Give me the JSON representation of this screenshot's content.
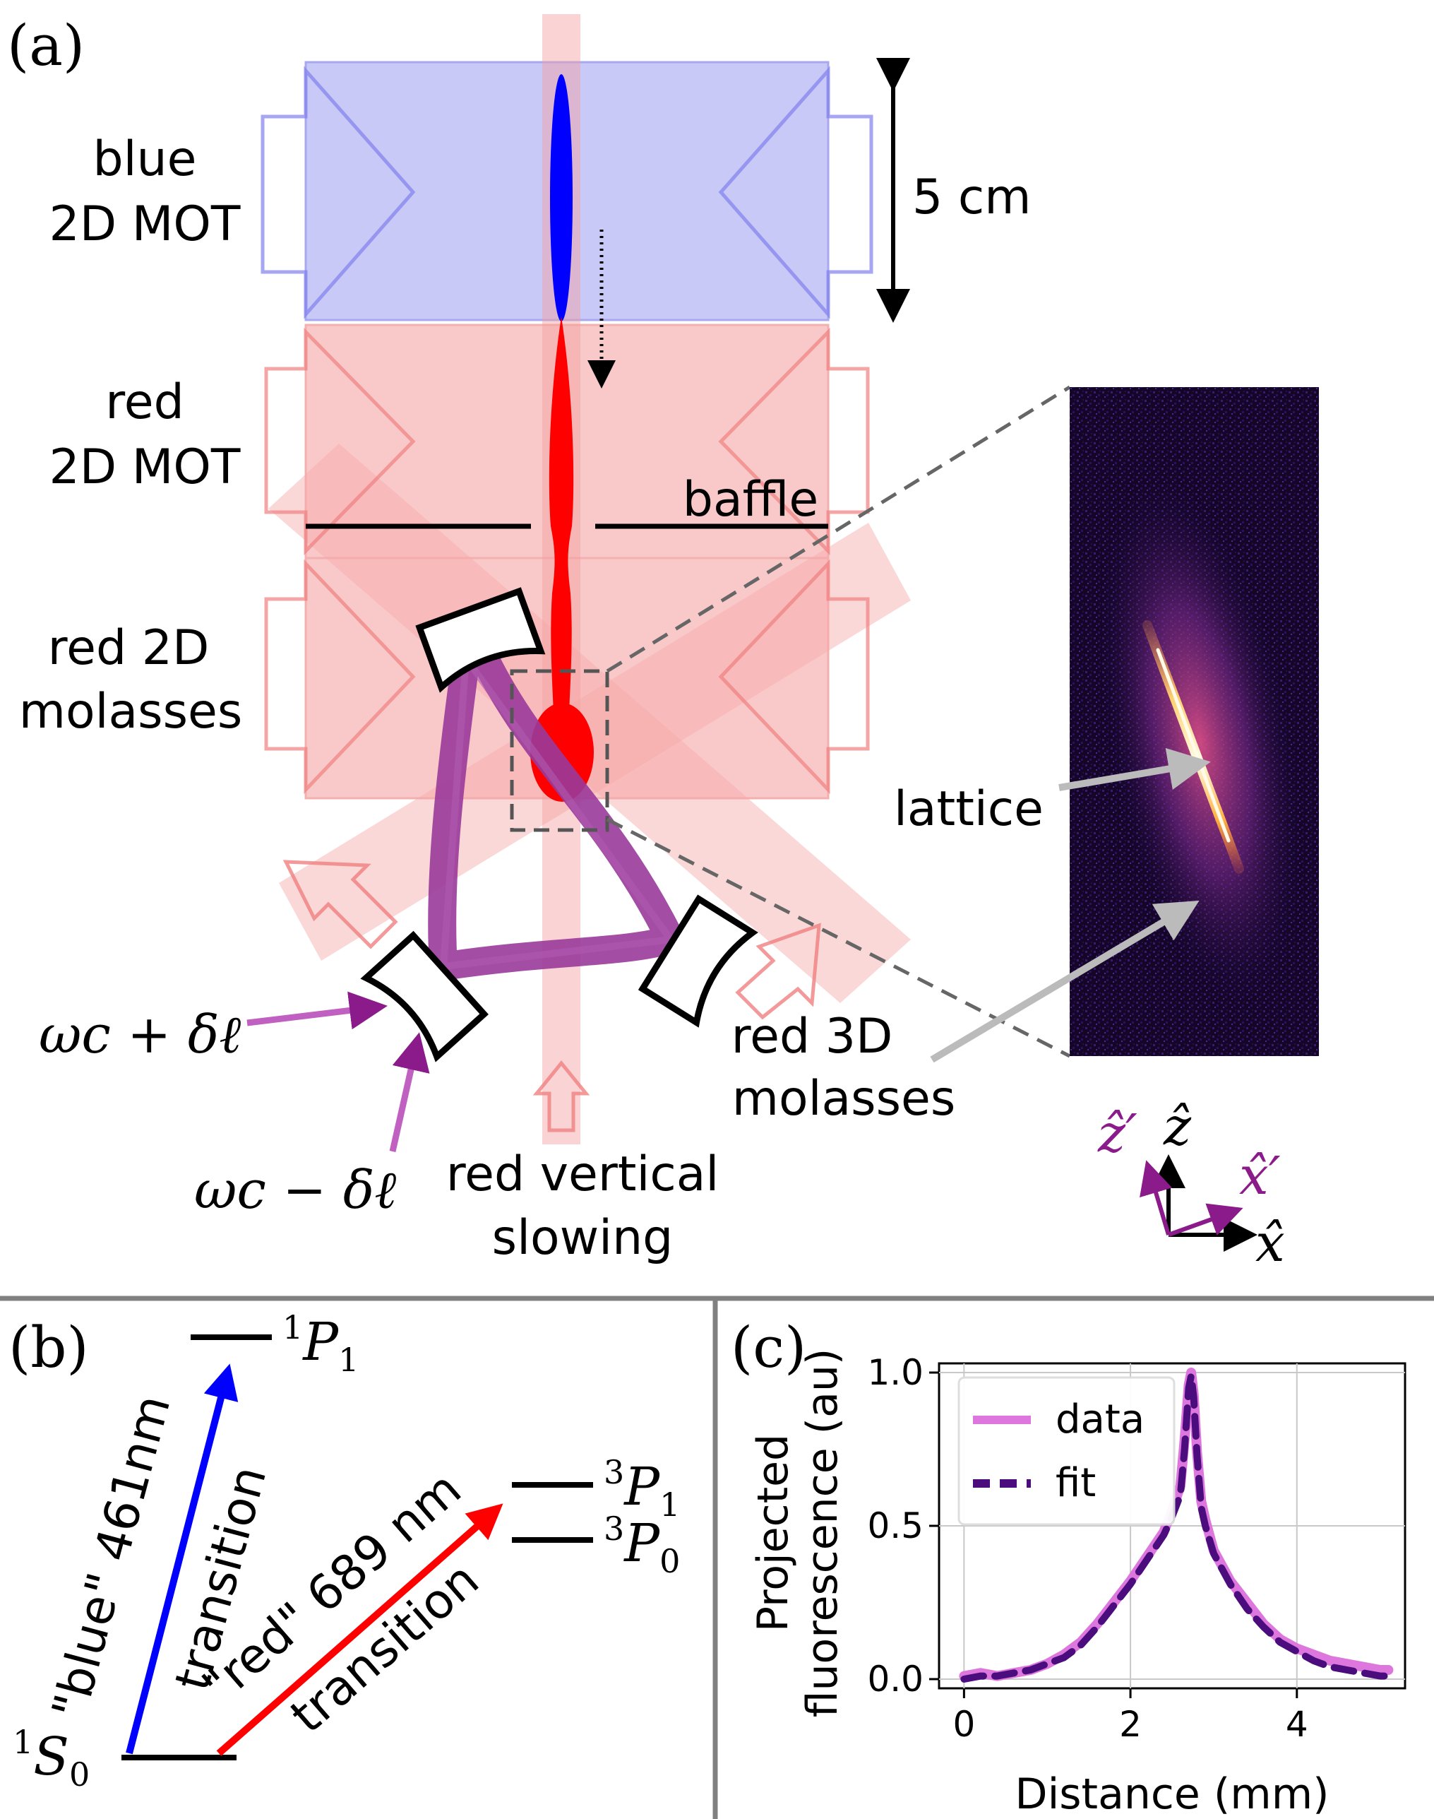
{
  "panel_a": {
    "label": "(a)",
    "scale_label": "5 cm",
    "region_blue": [
      "blue",
      "2D MOT"
    ],
    "region_red_mot": [
      "red",
      "2D MOT"
    ],
    "region_molasses": [
      "red 2D",
      "molasses"
    ],
    "baffle_label": "baffle",
    "lattice_label": "lattice",
    "molasses3d_label": [
      "red 3D",
      "molasses"
    ],
    "vertical_slowing_label": [
      "red vertical",
      "slowing"
    ],
    "input_plus": "ωc + δℓ",
    "input_minus": "ωc − δℓ",
    "axes": {
      "z_prime": "ẑ′",
      "z": "ẑ",
      "x_prime": "x̂′",
      "x": "x̂"
    },
    "colors": {
      "blue_region": "#c9c9f7",
      "red_region": "#f9c8c8",
      "cavity": "#9a3a9a",
      "blue_beam": "#0000ff",
      "red_beam": "#ff0000"
    }
  },
  "panel_b": {
    "label": "(b)",
    "levels": {
      "S0": "1S0",
      "P1_singlet": "1P1",
      "P1_triplet": "3P1",
      "P0_triplet": "3P0"
    },
    "blue_transition": [
      "\"blue\" 461nm",
      "transition"
    ],
    "red_transition": [
      "\"red\" 689 nm",
      "transition"
    ]
  },
  "panel_c": {
    "label": "(c)",
    "chart_data": {
      "type": "line",
      "xlabel": "Distance (mm)",
      "ylabel": "Projected fluorescence (au)",
      "ylabel_lines": [
        "Projected",
        "fluorescence (au)"
      ],
      "xlim": [
        -0.3,
        5.3
      ],
      "ylim": [
        -0.03,
        1.03
      ],
      "xticks": [
        0,
        2,
        4
      ],
      "yticks": [
        0.0,
        0.5,
        1.0
      ],
      "ytick_labels": [
        "0.0",
        "0.5",
        "1.0"
      ],
      "grid": true,
      "legend": "top-left",
      "series": [
        {
          "name": "data",
          "color": "#dd77dd",
          "style": "solid",
          "x": [
            0.0,
            0.2,
            0.4,
            0.6,
            0.8,
            1.0,
            1.2,
            1.4,
            1.6,
            1.8,
            2.0,
            2.2,
            2.4,
            2.5,
            2.6,
            2.65,
            2.7,
            2.73,
            2.76,
            2.8,
            2.85,
            2.9,
            3.0,
            3.2,
            3.4,
            3.6,
            3.8,
            4.0,
            4.2,
            4.4,
            4.6,
            4.8,
            5.0,
            5.1
          ],
          "y": [
            0.01,
            0.02,
            0.01,
            0.02,
            0.03,
            0.05,
            0.08,
            0.12,
            0.18,
            0.25,
            0.32,
            0.4,
            0.48,
            0.55,
            0.63,
            0.78,
            0.96,
            1.0,
            0.93,
            0.74,
            0.58,
            0.52,
            0.42,
            0.32,
            0.25,
            0.18,
            0.13,
            0.1,
            0.08,
            0.06,
            0.05,
            0.04,
            0.03,
            0.03
          ]
        },
        {
          "name": "fit",
          "color": "#4b0d7e",
          "style": "dashed",
          "x": [
            0.0,
            0.2,
            0.4,
            0.6,
            0.8,
            1.0,
            1.2,
            1.4,
            1.6,
            1.8,
            2.0,
            2.2,
            2.4,
            2.5,
            2.6,
            2.65,
            2.7,
            2.73,
            2.76,
            2.8,
            2.85,
            2.9,
            3.0,
            3.2,
            3.4,
            3.6,
            3.8,
            4.0,
            4.2,
            4.4,
            4.6,
            4.8,
            5.0,
            5.1
          ],
          "y": [
            0.0,
            0.01,
            0.01,
            0.02,
            0.03,
            0.05,
            0.07,
            0.11,
            0.17,
            0.24,
            0.31,
            0.39,
            0.47,
            0.53,
            0.6,
            0.75,
            0.95,
            0.99,
            0.92,
            0.73,
            0.56,
            0.5,
            0.41,
            0.31,
            0.23,
            0.17,
            0.12,
            0.09,
            0.06,
            0.04,
            0.03,
            0.02,
            0.01,
            0.01
          ]
        }
      ]
    }
  }
}
